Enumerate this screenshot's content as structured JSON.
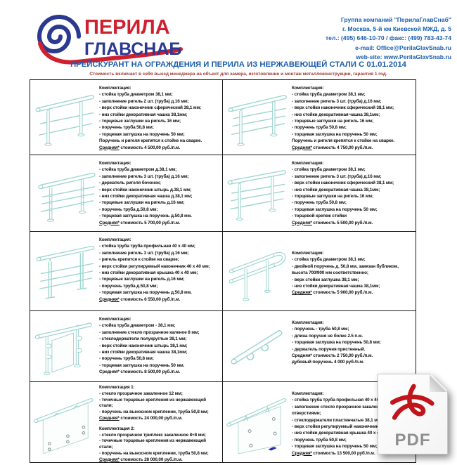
{
  "header": {
    "logo": {
      "line1": "ПЕРИЛА",
      "line2": "ГЛАВСНАБ"
    },
    "contact": {
      "lines": [
        "Группа компаний \"ПерилаГлавСнаб\"",
        "г. Москва, 5-й км Киевской МЖД, д. 5",
        "тел.: (495) 646-10-70 / факс: (499) 783-43-74",
        "e-mail: Office@PerilaGlavSnab.ru",
        "web-site: www.PerilaGlavSnab.ru"
      ]
    }
  },
  "title": "ПРЕЙСКУРАНТ НА ОГРАЖДЕНИЯ И ПЕРИЛА ИЗ НЕРЖАВЕЮЩЕЙ СТАЛИ С 01.01.2014",
  "subtitle": "Стоимость включает в себя выезд менеджера на объект для замера, изготовление и монтаж металлоконструкции, гарантия 1 год.",
  "colors": {
    "accent_blue": "#1b5eaf",
    "logo_red": "#cf2030",
    "logo_blue": "#2b3990",
    "subtitle_red": "#a03a35",
    "drawing_teal": "#9fd6cf"
  },
  "pdf_badge": {
    "label": "PDF"
  },
  "table": {
    "rows": [
      [
        {
          "art": "railing-two-rails",
          "blocks": [
            {
              "title": "Комплектация:",
              "items": [
                "- стойка труба диаметром 38,1 мм;",
                "- заполнение ригель 2 шт. (труба) д.16 мм;",
                "- верх стойки наконечник сферический 38,1 мм;",
                "- низ стойки декоративная чашка 38,1мм;",
                "- торцевые заглушки на ригель 16 мм;",
                "- поручень труба 50,8 мм;",
                "- торцевая заглушка на поручень 50 мм;",
                "Поручень и ригеля крепятся к стойке на сварке."
              ],
              "price_lines": [
                {
                  "prefix": "Средняя*",
                  "rest": " стоимость 4 500,00 руб./п.м."
                }
              ]
            }
          ]
        },
        {
          "art": "railing-three-rails",
          "blocks": [
            {
              "title": "Комплектация:",
              "items": [
                "- стойка труба диаметром 38,1 мм;",
                "- заполнение ригель 3 шт. (труба) д.16 мм;",
                "- верх стойки наконечник сферический 38,1 мм;",
                "- низ стойки декоративная чашка 38,1мм;",
                "- торцевые заглушки на ригель 16 мм;",
                "- поручень труба 50,8 мм;",
                "- торцевая заглушка на поручень 50 мм;",
                "Поручень и ригеля крепятся к стойке на сварке."
              ],
              "price_lines": [
                {
                  "prefix": "Средняя*",
                  "rest": " стоимость 4 750,00 руб./п.м."
                }
              ]
            }
          ]
        }
      ],
      [
        {
          "art": "railing-three-rails-barrel",
          "blocks": [
            {
              "title": "Комплектация:",
              "items": [
                "- стойка труба диаметром д.38,1 мм;",
                "- заполнение ригель 3 шт. (труба) д.16 мм;",
                "- держатель ригеля бочонок;",
                "- верх стойки наконечник штырь д.38,1 мм;",
                "- низ стойки декоративная чашка д.38,1 мм;",
                "- торцевые заглушки на ригель д.16 мм;",
                "- поручень труба д.50,8 мм;",
                "- торцевая заглушка на поручень д.50,8 мм."
              ],
              "price_lines": [
                {
                  "prefix": "Средняя*",
                  "rest": " стоимость 5 700,00 руб./п.м."
                }
              ]
            }
          ]
        },
        {
          "art": "railing-three-rails-welded",
          "blocks": [
            {
              "title": "Комплектация:",
              "items": [
                "- стойка труба диаметром 38,1 мм;",
                "- заполнение ригель 3 шт. (труба) д.16 мм;",
                "- верх стойки наконечник сферический 38,1 мм;",
                "- низ стойки декоративная чашка 38,1мм;",
                "- торцевые заглушки на ригель 16 мм;",
                "- поручень труба 50,8 мм;",
                "- торцевая заглушка на поручень 50 мм;",
                "- торцевой крепеж стойки"
              ],
              "price_lines": [
                {
                  "prefix": "Средняя*",
                  "rest": " стоимость 5 500,00 руб./п.м."
                }
              ]
            }
          ]
        }
      ],
      [
        {
          "art": "railing-square-profile",
          "blocks": [
            {
              "title": "Комплектация:",
              "items": [
                "- стойка труба труба профильная 40 х 40 мм;",
                "- заполнение ригель 3 шт. (труба) д.16 мм;",
                "- ригель крепится к стойке на сварке;",
                "- верх стойки регулируемый наконечник 40 х 40 мм;",
                "- низ стойки декоративная крышка 40 х 40 мм;",
                "- торцевые заглушки на ригель д.16 мм;",
                "- поручень труба д.50,8 мм;",
                "- торцевая заглушка на поручень д.50,8 мм."
              ],
              "price_lines": [
                {
                  "prefix": "Средняя*",
                  "rest": " стоимость 6 550,00 руб./п.м."
                }
              ]
            }
          ]
        },
        {
          "art": "double-handrail-loop",
          "blocks": [
            {
              "title": "Комплектация:",
              "items": [
                "- стойка труба диаметром 38,1 мм;",
                "- двойной поручень д. 50,8 мм, завязан бубликом, высота 700/900 мм соответственно;",
                "- верх стойки заглушка 38,1 мм;",
                "- низ стойки декоративная чашка 38,1мм;"
              ],
              "price_lines": [
                {
                  "prefix": "Средняя*",
                  "rest": " стоимость 5 900,00 руб./п.м."
                }
              ]
            }
          ]
        }
      ],
      [
        {
          "art": "glass-railing-posts",
          "blocks": [
            {
              "title": "Комплектация:",
              "items": [
                "- стойка труба диаметром - 38,1 мм;",
                "- заполнение стекло прозрачное каленое 8 мм;",
                "- стеклодержатели полукруглые 38,1 мм;",
                "- верх стойки наконечник штырь 38,1 мм;",
                "- низ стойки декоративная чашка 38,1мм;",
                "- поручень труба 50,8 мм;",
                "- торцевая заглушка на поручень 50 мм."
              ],
              "price_lines": [
                {
                  "prefix": "",
                  "rest": "Средняя* стоимость 8 500,00 руб./п.м."
                }
              ]
            }
          ]
        },
        {
          "art": "wall-handrail",
          "blocks": [
            {
              "title": "Комплектация:",
              "items": [
                "- поручень - труба 50,8 мм;",
                "- длина поручня не более 2.5 п.м.",
                "- торцевая заглушка на поручень 50,8 мм;",
                "- держатель поручня пристенный."
              ],
              "price_lines": [
                {
                  "prefix": "",
                  "rest": "Средняя* стоимость 2 750,00 руб./п.м."
                },
                {
                  "prefix": "",
                  "rest": "дубовый поручень 4 000 руб./п.м."
                }
              ]
            }
          ]
        }
      ],
      [
        {
          "art": "glass-point-fixed",
          "blocks": [
            {
              "title": "Комплектация 1:",
              "items": [
                "- стекло прозрачное закаленное 12 мм;",
                "- точечные торцевые крепления из нержавеющей стали;",
                "- поручень на выносном креплении, труба 50,8 мм;"
              ],
              "price_lines": [
                {
                  "prefix": "Средняя*",
                  "rest": " стоимость 24 000,00 руб./п.м."
                }
              ]
            },
            {
              "title": "Комплектация 2:",
              "items": [
                "- стекло прозрачное триплекс закаленное 8+8 мм;",
                "- точечные торцевые крепления из нержавеющей стали;",
                "- поручень на выносном креплении, труба 50,8 мм;"
              ],
              "price_lines": [
                {
                  "prefix": "Средняя*",
                  "rest": " стоимость 28 000,00 руб./п.м."
                }
              ]
            }
          ]
        },
        {
          "art": "glass-plate-holders",
          "blocks": [
            {
              "title": "Комплектация:",
              "items": [
                "- стойка труба труба профильная 40 х 40 мм;",
                "- заполнение стекло прозрачное закаленное с отверстиями;",
                "- стеклодержатели пластинчатые 38,1 мм;",
                "- верх стойки регулируемый наконечник 40 х 40 мм;",
                "- низ стойки декоративная крышка 40 х 40 мм;",
                "- поручень труба 50,8 мм;",
                "- торцевая заглушка на поручень 50 мм;"
              ],
              "price_lines": [
                {
                  "prefix": "Средняя*",
                  "rest": " стоимость 13 500,00 руб./п.м."
                }
              ]
            }
          ]
        }
      ]
    ]
  }
}
